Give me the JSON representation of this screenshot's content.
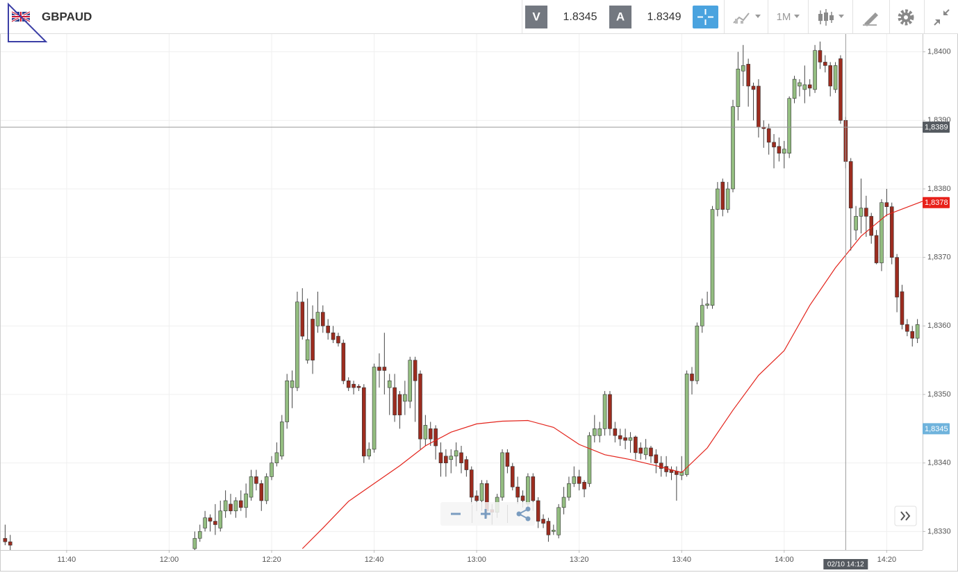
{
  "header": {
    "symbol": "GBPAUD",
    "bid_label": "V",
    "bid": "1.8345",
    "ask_label": "A",
    "ask": "1.8349",
    "timeframe": "1M"
  },
  "chart_data": {
    "type": "candlestick",
    "x": [
      "11:28",
      "11:29",
      "12:05",
      "12:06",
      "12:07",
      "12:08",
      "12:09",
      "12:10",
      "12:11",
      "12:12",
      "12:13",
      "12:14",
      "12:15",
      "12:16",
      "12:17",
      "12:18",
      "12:19",
      "12:20",
      "12:21",
      "12:22",
      "12:23",
      "12:24",
      "12:25",
      "12:26",
      "12:27",
      "12:28",
      "12:29",
      "12:30",
      "12:31",
      "12:32",
      "12:33",
      "12:34",
      "12:35",
      "12:36",
      "12:37",
      "12:38",
      "12:39",
      "12:40",
      "12:41",
      "12:42",
      "12:43",
      "12:44",
      "12:45",
      "12:46",
      "12:47",
      "12:48",
      "12:49",
      "12:50",
      "12:51",
      "12:52",
      "12:53",
      "12:54",
      "12:55",
      "12:56",
      "12:57",
      "12:58",
      "12:59",
      "13:00",
      "13:01",
      "13:02",
      "13:03",
      "13:04",
      "13:05",
      "13:06",
      "13:07",
      "13:08",
      "13:09",
      "13:10",
      "13:11",
      "13:12",
      "13:13",
      "13:14",
      "13:15",
      "13:16",
      "13:17",
      "13:18",
      "13:19",
      "13:20",
      "13:21",
      "13:22",
      "13:23",
      "13:24",
      "13:25",
      "13:26",
      "13:27",
      "13:28",
      "13:29",
      "13:30",
      "13:31",
      "13:32",
      "13:33",
      "13:34",
      "13:35",
      "13:36",
      "13:37",
      "13:38",
      "13:39",
      "13:40",
      "13:41",
      "13:42",
      "13:43",
      "13:44",
      "13:45",
      "13:46",
      "13:47",
      "13:48",
      "13:49",
      "13:50",
      "13:51",
      "13:52",
      "13:53",
      "13:54",
      "13:55",
      "13:56",
      "13:57",
      "13:58",
      "13:59",
      "14:00",
      "14:01",
      "14:02",
      "14:03",
      "14:04",
      "14:05",
      "14:06",
      "14:07",
      "14:08",
      "14:09",
      "14:10",
      "14:11",
      "14:12",
      "14:13",
      "14:14",
      "14:15",
      "14:16",
      "14:17",
      "14:18",
      "14:19",
      "14:20",
      "14:21",
      "14:22",
      "14:23",
      "14:24",
      "14:25",
      "14:26"
    ],
    "open": [
      1.8329,
      1.83285,
      1.83275,
      1.8329,
      1.83305,
      1.8332,
      1.83315,
      1.83305,
      1.8333,
      1.8334,
      1.8333,
      1.83345,
      1.83335,
      1.8335,
      1.8338,
      1.8337,
      1.83345,
      1.8338,
      1.834,
      1.8341,
      1.8346,
      1.8351,
      1.8351,
      1.83635,
      1.8355,
      1.8361,
      1.836,
      1.8362,
      1.836,
      1.8359,
      1.83585,
      1.83575,
      1.8352,
      1.83515,
      1.83512,
      1.8351,
      1.8341,
      1.8342,
      1.8354,
      1.8354,
      1.8351,
      1.8351,
      1.835,
      1.8349,
      1.8349,
      1.8355,
      1.8353,
      1.83435,
      1.8345,
      1.8345,
      1.83415,
      1.8341,
      1.83405,
      1.8341,
      1.83415,
      1.83405,
      1.8339,
      1.83352,
      1.83345,
      1.8337,
      1.83332,
      1.83328,
      1.8335,
      1.83415,
      1.83395,
      1.83365,
      1.83352,
      1.8334,
      1.8338,
      1.83345,
      1.83318,
      1.83315,
      1.833,
      1.83295,
      1.83335,
      1.8335,
      1.8337,
      1.8338,
      1.83372,
      1.8337,
      1.8344,
      1.8344,
      1.8345,
      1.835,
      1.8345,
      1.8344,
      1.83437,
      1.83433,
      1.83438,
      1.83422,
      1.83412,
      1.83422,
      1.83412,
      1.834,
      1.83395,
      1.8339,
      1.83388,
      1.83382,
      1.83383,
      1.8353,
      1.8352,
      1.836,
      1.8363,
      1.8363,
      1.8377,
      1.8381,
      1.8377,
      1.838,
      1.8392,
      1.83972,
      1.83982,
      1.8395,
      1.8395,
      1.8389,
      1.83888,
      1.83868,
      1.83862,
      1.83852,
      1.83852,
      1.83932,
      1.8395,
      1.83945,
      1.83952,
      1.83945,
      1.84002,
      1.83985,
      1.8398,
      1.83945,
      1.8399,
      1.839,
      1.8384,
      1.8374,
      1.8376,
      1.83772,
      1.8376,
      1.83732,
      1.83692,
      1.8378,
      1.83774,
      1.837,
      1.8365,
      1.83602,
      1.83592,
      1.83582
    ],
    "high": [
      1.8331,
      1.83295,
      1.833,
      1.8331,
      1.8333,
      1.83325,
      1.8334,
      1.83345,
      1.8336,
      1.83355,
      1.8335,
      1.8336,
      1.8337,
      1.8339,
      1.8339,
      1.83375,
      1.83385,
      1.8341,
      1.8343,
      1.8347,
      1.8353,
      1.83535,
      1.8365,
      1.83655,
      1.8364,
      1.8363,
      1.8365,
      1.8363,
      1.8361,
      1.836,
      1.8359,
      1.8358,
      1.83525,
      1.8352,
      1.83515,
      1.83515,
      1.8343,
      1.83545,
      1.8356,
      1.8359,
      1.8353,
      1.8353,
      1.83505,
      1.8352,
      1.83555,
      1.83555,
      1.83535,
      1.8347,
      1.8346,
      1.83455,
      1.8343,
      1.8342,
      1.8342,
      1.8343,
      1.83425,
      1.8341,
      1.83395,
      1.8336,
      1.83375,
      1.83375,
      1.8334,
      1.83355,
      1.8342,
      1.8342,
      1.834,
      1.8338,
      1.8336,
      1.83385,
      1.83385,
      1.8335,
      1.83325,
      1.8332,
      1.8331,
      1.8334,
      1.83365,
      1.8338,
      1.83395,
      1.8339,
      1.83375,
      1.83445,
      1.8347,
      1.8346,
      1.83505,
      1.83505,
      1.8346,
      1.8345,
      1.8345,
      1.83445,
      1.8344,
      1.8343,
      1.83435,
      1.83425,
      1.8342,
      1.8341,
      1.8341,
      1.83395,
      1.83395,
      1.8341,
      1.83535,
      1.8354,
      1.83605,
      1.8364,
      1.8365,
      1.83775,
      1.8381,
      1.83815,
      1.8381,
      1.8393,
      1.84,
      1.8401,
      1.8399,
      1.83955,
      1.8396,
      1.839,
      1.83895,
      1.8388,
      1.83875,
      1.8387,
      1.83935,
      1.83965,
      1.8396,
      1.8398,
      1.8396,
      1.8401,
      1.84015,
      1.83995,
      1.83985,
      1.83985,
      1.83995,
      1.83905,
      1.83845,
      1.83775,
      1.83815,
      1.8379,
      1.83765,
      1.8374,
      1.83785,
      1.838,
      1.8378,
      1.83705,
      1.8366,
      1.8361,
      1.836,
      1.8361
    ],
    "low": [
      1.8328,
      1.8327,
      1.8327,
      1.83285,
      1.833,
      1.833,
      1.83295,
      1.833,
      1.8332,
      1.83325,
      1.8332,
      1.8333,
      1.8332,
      1.83345,
      1.8336,
      1.8333,
      1.8334,
      1.83375,
      1.83395,
      1.83405,
      1.8345,
      1.8348,
      1.83505,
      1.8358,
      1.83545,
      1.8353,
      1.8359,
      1.8359,
      1.8358,
      1.83575,
      1.8357,
      1.83515,
      1.83505,
      1.835,
      1.83505,
      1.834,
      1.83405,
      1.83415,
      1.8351,
      1.835,
      1.8347,
      1.8346,
      1.8345,
      1.8347,
      1.8348,
      1.8346,
      1.8342,
      1.83425,
      1.83425,
      1.83405,
      1.8338,
      1.8338,
      1.83385,
      1.83395,
      1.83385,
      1.8338,
      1.8334,
      1.8333,
      1.8333,
      1.8332,
      1.8331,
      1.8332,
      1.83345,
      1.83385,
      1.8336,
      1.8334,
      1.83335,
      1.83335,
      1.8333,
      1.83305,
      1.83305,
      1.83285,
      1.83295,
      1.8329,
      1.83325,
      1.83345,
      1.83365,
      1.8336,
      1.8335,
      1.83365,
      1.8343,
      1.8343,
      1.8344,
      1.8344,
      1.8343,
      1.83425,
      1.8342,
      1.83415,
      1.83405,
      1.83405,
      1.83405,
      1.834,
      1.83385,
      1.8338,
      1.8338,
      1.83375,
      1.83345,
      1.83375,
      1.8338,
      1.835,
      1.83515,
      1.8359,
      1.83625,
      1.83625,
      1.8376,
      1.8376,
      1.83765,
      1.83795,
      1.839,
      1.8395,
      1.8392,
      1.839,
      1.83875,
      1.8386,
      1.8385,
      1.8383,
      1.8384,
      1.8383,
      1.83845,
      1.83925,
      1.83935,
      1.83925,
      1.83935,
      1.8394,
      1.83975,
      1.8397,
      1.83935,
      1.8394,
      1.83895,
      1.8383,
      1.8371,
      1.83725,
      1.83735,
      1.8373,
      1.8372,
      1.8369,
      1.8368,
      1.8376,
      1.8369,
      1.8362,
      1.83595,
      1.83585,
      1.8357,
      1.83575
    ],
    "close": [
      1.83285,
      1.8328,
      1.8329,
      1.833,
      1.8332,
      1.83315,
      1.8331,
      1.8333,
      1.83345,
      1.8333,
      1.83345,
      1.83335,
      1.83355,
      1.8338,
      1.8337,
      1.83345,
      1.8338,
      1.834,
      1.83415,
      1.8346,
      1.8352,
      1.8352,
      1.83635,
      1.83585,
      1.8358,
      1.8355,
      1.8362,
      1.836,
      1.8359,
      1.8358,
      1.83575,
      1.8352,
      1.8351,
      1.8351,
      1.8351,
      1.8341,
      1.8342,
      1.8354,
      1.83535,
      1.83535,
      1.8352,
      1.8347,
      1.8347,
      1.835,
      1.8355,
      1.8352,
      1.83435,
      1.83455,
      1.83435,
      1.83425,
      1.834,
      1.834,
      1.8341,
      1.83418,
      1.834,
      1.8339,
      1.8335,
      1.83345,
      1.8337,
      1.8333,
      1.83328,
      1.8335,
      1.83415,
      1.83395,
      1.83365,
      1.8335,
      1.83345,
      1.8338,
      1.83345,
      1.83315,
      1.83312,
      1.83295,
      1.83302,
      1.83335,
      1.8335,
      1.8337,
      1.8338,
      1.8337,
      1.83362,
      1.8344,
      1.8345,
      1.8345,
      1.835,
      1.8345,
      1.8344,
      1.83435,
      1.83433,
      1.83437,
      1.83415,
      1.83414,
      1.83422,
      1.8341,
      1.834,
      1.83392,
      1.83387,
      1.83386,
      1.83383,
      1.83387,
      1.8353,
      1.8352,
      1.836,
      1.8363,
      1.83632,
      1.8377,
      1.838,
      1.8377,
      1.838,
      1.8392,
      1.83975,
      1.8398,
      1.8395,
      1.83945,
      1.8389,
      1.83888,
      1.83868,
      1.83861,
      1.83852,
      1.83858,
      1.83932,
      1.8396,
      1.83955,
      1.83952,
      1.83947,
      1.84002,
      1.83985,
      1.8398,
      1.8395,
      1.8398,
      1.839,
      1.8384,
      1.83772,
      1.8376,
      1.83772,
      1.8376,
      1.83732,
      1.83692,
      1.8378,
      1.83774,
      1.837,
      1.83642,
      1.83602,
      1.83592,
      1.83582,
      1.83602
    ],
    "up_color": "#93bd80",
    "down_color": "#9c2c1f",
    "moving_average": {
      "color": "#e3231b",
      "x": [
        "12:26",
        "12:30",
        "12:35",
        "12:40",
        "12:45",
        "12:50",
        "12:55",
        "13:00",
        "13:05",
        "13:10",
        "13:15",
        "13:20",
        "13:25",
        "13:30",
        "13:35",
        "13:40",
        "13:45",
        "13:50",
        "13:55",
        "14:00",
        "14:05",
        "14:10",
        "14:15",
        "14:20",
        "14:27"
      ],
      "values": [
        1.83275,
        1.83305,
        1.83344,
        1.8337,
        1.83396,
        1.83425,
        1.83445,
        1.83457,
        1.83461,
        1.83462,
        1.83452,
        1.83427,
        1.83412,
        1.83405,
        1.83396,
        1.83386,
        1.83422,
        1.83477,
        1.83528,
        1.83564,
        1.8363,
        1.83685,
        1.83731,
        1.83762,
        1.83782
      ]
    },
    "xlim": [
      "11:27",
      "14:27"
    ],
    "xticks": [
      "11:40",
      "12:00",
      "12:20",
      "12:40",
      "13:00",
      "13:20",
      "13:40",
      "14:00",
      "14:20"
    ],
    "ylim": [
      1.83273,
      1.84027
    ],
    "yticks": [
      {
        "value": 1.833,
        "label": "1,8330"
      },
      {
        "value": 1.834,
        "label": "1,8340"
      },
      {
        "value": 1.835,
        "label": "1,8350"
      },
      {
        "value": 1.836,
        "label": "1,8360"
      },
      {
        "value": 1.837,
        "label": "1,8370"
      },
      {
        "value": 1.838,
        "label": "1,8380"
      },
      {
        "value": 1.839,
        "label": "1,8390"
      },
      {
        "value": 1.84,
        "label": "1,8400"
      }
    ],
    "grid": true,
    "price_tags": [
      {
        "value": 1.8389,
        "label": "1,8389",
        "color": "#555a60"
      },
      {
        "value": 1.8378,
        "label": "1,8378",
        "color": "#e8211a"
      },
      {
        "value": 1.8345,
        "label": "1,8345",
        "color": "#6fb3dc"
      }
    ],
    "crosshair_time": "02/10 14:12"
  }
}
